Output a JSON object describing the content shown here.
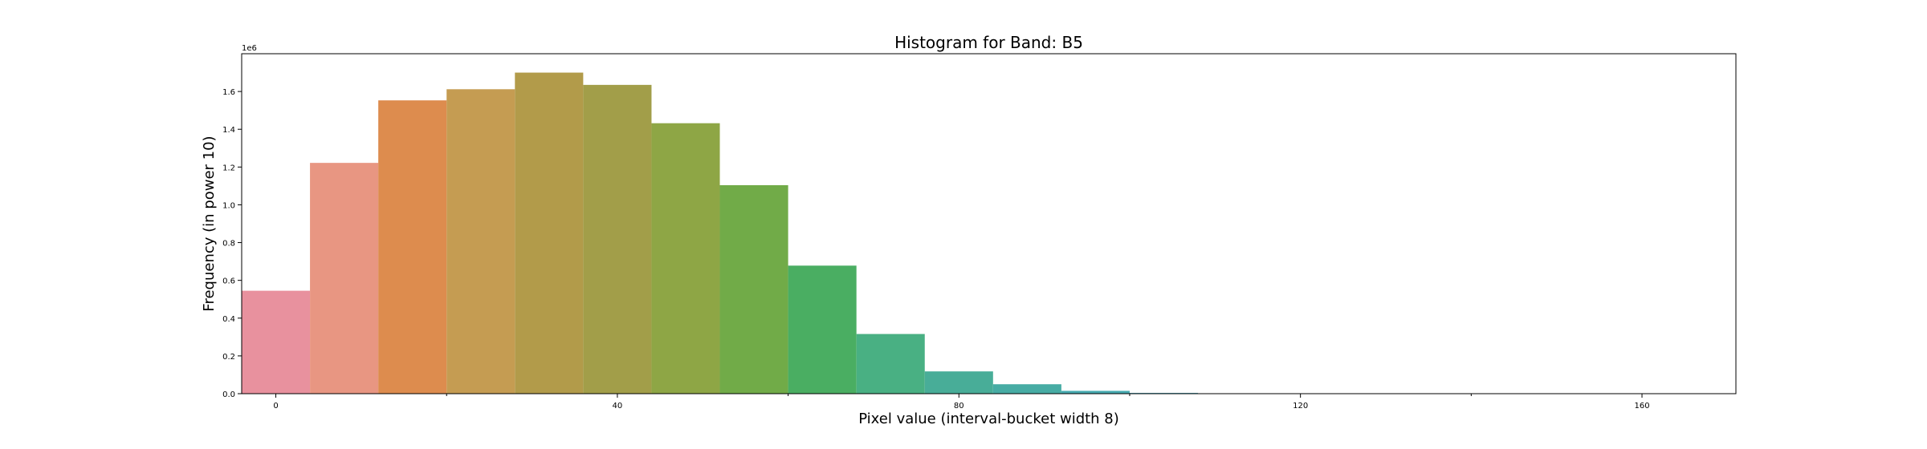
{
  "chart_data": {
    "type": "bar",
    "title": "Histogram for Band: B5",
    "xlabel": "Pixel value (interval-bucket width 8)",
    "ylabel": "Frequency (in power 10)",
    "y_offset_label": "1e6",
    "x": [
      0,
      8,
      16,
      24,
      32,
      40,
      48,
      56,
      64,
      72,
      80,
      88,
      96,
      104,
      112,
      120,
      128,
      136,
      144,
      152,
      160
    ],
    "values": [
      545000,
      1222000,
      1553000,
      1612000,
      1700000,
      1635000,
      1432000,
      1104000,
      678000,
      316000,
      118000,
      50000,
      15000,
      4000,
      1000,
      300,
      100,
      50,
      20,
      10,
      5
    ],
    "colors": [
      "#e8919e",
      "#e89682",
      "#dd8c4e",
      "#c59c52",
      "#b29b4a",
      "#a29e49",
      "#8ea645",
      "#71ab48",
      "#4aae62",
      "#49b083",
      "#48ad98",
      "#47aca4",
      "#47aab0",
      "#48a8bc",
      "#4da4cb",
      "#6f9fdb",
      "#9a96e4",
      "#b58ee8",
      "#cd84e6",
      "#e07cd4",
      "#e885b8"
    ],
    "xlim": [
      -4,
      171
    ],
    "ylim": [
      0,
      1800000
    ],
    "x_ticks": [
      0,
      40,
      80,
      120,
      160
    ],
    "x_minor_ticks": [
      20,
      60,
      100,
      140
    ],
    "y_ticks": [
      0,
      200000,
      400000,
      600000,
      800000,
      1000000,
      1200000,
      1400000,
      1600000
    ],
    "y_tick_labels": [
      "0.0",
      "0.2",
      "0.4",
      "0.6",
      "0.8",
      "1.0",
      "1.2",
      "1.4",
      "1.6"
    ],
    "x_tick_labels": [
      "0",
      "40",
      "80",
      "120",
      "160"
    ],
    "grid": false,
    "legend": "none"
  }
}
